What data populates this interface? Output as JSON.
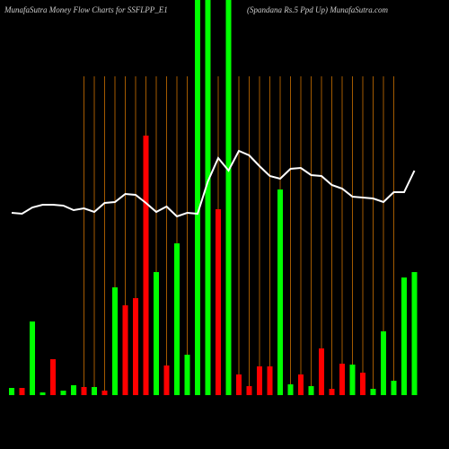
{
  "chart_data": {
    "type": "bar",
    "title": "MunafaSutra  Money Flow  Charts for SSFLPP_E1",
    "subtitle": "(Spandana  Rs.5 Ppd Up) MunafaSutra.com",
    "categories": [
      null,
      null,
      null,
      null,
      null,
      null,
      null,
      null,
      null,
      null,
      null,
      null,
      null,
      null,
      null,
      null,
      null,
      null,
      null,
      null,
      null,
      null,
      null,
      null,
      null,
      null,
      null,
      null,
      null,
      null,
      null,
      null,
      null,
      null,
      null,
      null,
      null,
      null,
      null,
      null
    ],
    "values": [
      8,
      8,
      82,
      3,
      40,
      5,
      11,
      9,
      9,
      5,
      120,
      100,
      108,
      289,
      137,
      33,
      169,
      45,
      440,
      440,
      207,
      440,
      23,
      10,
      32,
      32,
      229,
      12,
      23,
      10,
      52,
      7,
      35,
      34,
      25,
      7,
      71,
      16,
      131,
      137
    ],
    "bar_colors": [
      "#00ff00",
      "#ff0000",
      "#00ff00",
      "#00ff00",
      "#ff0000",
      "#00ff00",
      "#00ff00",
      "#ff0000",
      "#00ff00",
      "#ff0000",
      "#00ff00",
      "#ff0000",
      "#ff0000",
      "#ff0000",
      "#00ff00",
      "#ff0000",
      "#00ff00",
      "#00ff00",
      "#00ff00",
      "#00ff00",
      "#ff0000",
      "#00ff00",
      "#ff0000",
      "#ff0000",
      "#ff0000",
      "#ff0000",
      "#00ff00",
      "#00ff00",
      "#ff0000",
      "#00ff00",
      "#ff0000",
      "#ff0000",
      "#ff0000",
      "#00ff00",
      "#ff0000",
      "#00ff00",
      "#00ff00",
      "#00ff00",
      "#00ff00",
      "#00ff00"
    ],
    "line_values": [
      203,
      202,
      209,
      212,
      212,
      211,
      206,
      208,
      204,
      214,
      215,
      224,
      223,
      214,
      204,
      210,
      199,
      203,
      202,
      238,
      264,
      250,
      272,
      267,
      255,
      244,
      241,
      252,
      253,
      245,
      244,
      234,
      230,
      221,
      220,
      219,
      215,
      226,
      226,
      250
    ],
    "line_color": "#ffffff",
    "ylim": [
      0,
      440
    ]
  }
}
